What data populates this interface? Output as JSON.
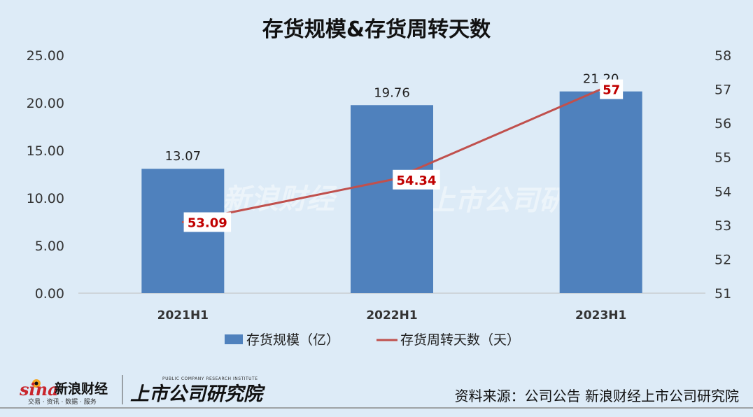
{
  "chart_data": {
    "type": "bar",
    "title": "存货规模&存货周转天数",
    "categories": [
      "2021H1",
      "2022H1",
      "2023H1"
    ],
    "series": [
      {
        "name": "存货规模（亿）",
        "type": "bar",
        "axis": "left",
        "values": [
          13.07,
          19.76,
          21.2
        ],
        "labels": [
          "13.07",
          "19.76",
          "21.20"
        ],
        "color": "#4f81bd"
      },
      {
        "name": "存货周转天数（天）",
        "type": "line",
        "axis": "right",
        "values": [
          53.09,
          54.34,
          57
        ],
        "labels": [
          "53.09",
          "54.34",
          "57"
        ],
        "color": "#c0504d"
      }
    ],
    "left_axis": {
      "ylim": [
        0,
        25
      ],
      "ticks": [
        "0.00",
        "5.00",
        "10.00",
        "15.00",
        "20.00",
        "25.00"
      ]
    },
    "right_axis": {
      "ylim": [
        51,
        58
      ],
      "ticks": [
        "51",
        "52",
        "53",
        "54",
        "55",
        "56",
        "57",
        "58"
      ]
    },
    "grid": false,
    "legend_placement": "bottom"
  },
  "footer": {
    "source": "资料来源：公司公告 新浪财经上市公司研究院",
    "logo_sina": "sina",
    "logo_sina_cn": "新浪财经",
    "logo_sina_sub": "交易 · 资讯 · 数据 · 服务",
    "logo_institute": "上市公司研究院",
    "logo_institute_en": "PUBLIC COMPANY RESEARCH INSTITUTE"
  },
  "colors": {
    "background": "#ddebf7",
    "bar": "#4f81bd",
    "line": "#c0504d",
    "line_label": "#c00000"
  }
}
